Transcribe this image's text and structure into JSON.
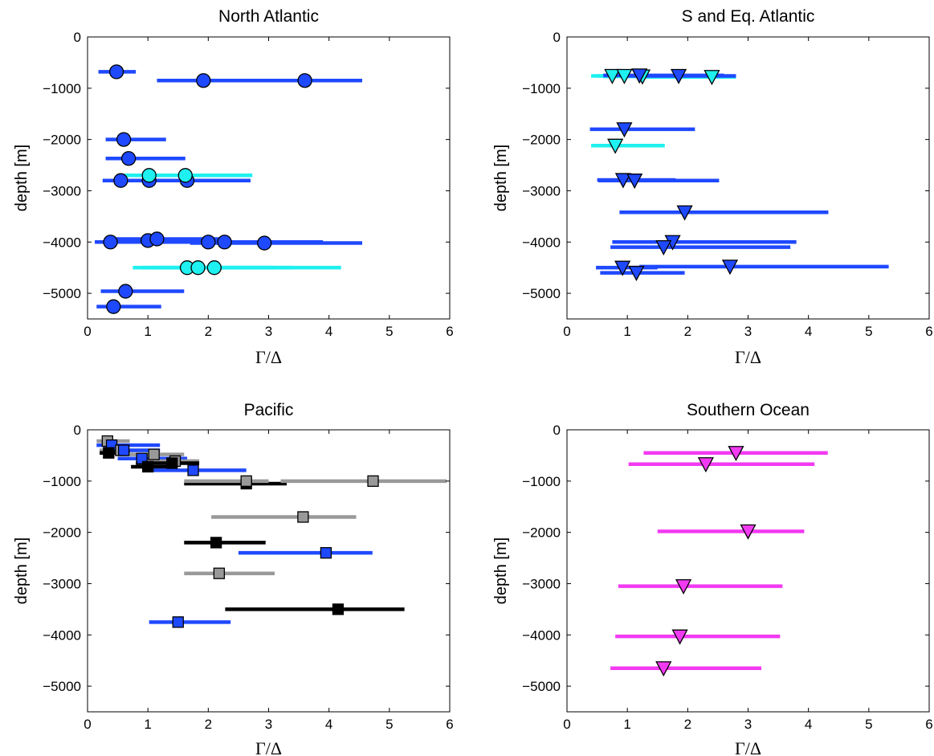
{
  "figure": {
    "title": ""
  },
  "chart_data": [
    {
      "id": "north-atlantic",
      "type": "scatter",
      "title": "North Atlantic",
      "xlabel": "Γ/Δ",
      "ylabel": "depth [m]",
      "xlim": [
        0,
        6
      ],
      "ylim": [
        -5500,
        0
      ],
      "xticks": [
        0,
        1,
        2,
        3,
        4,
        5,
        6
      ],
      "yticks": [
        0,
        -1000,
        -2000,
        -3000,
        -4000,
        -5000
      ],
      "marker": "circle",
      "points": [
        {
          "x": 0.48,
          "y": -680,
          "xmin": 0.18,
          "xmax": 0.8,
          "color": "#1f49ff"
        },
        {
          "x": 1.92,
          "y": -850,
          "xmin": 1.15,
          "xmax": 2.6,
          "color": "#1f49ff"
        },
        {
          "x": 3.6,
          "y": -850,
          "xmin": 2.5,
          "xmax": 4.55,
          "color": "#1f49ff"
        },
        {
          "x": 0.6,
          "y": -2000,
          "xmin": 0.3,
          "xmax": 1.3,
          "color": "#1f49ff"
        },
        {
          "x": 0.68,
          "y": -2370,
          "xmin": 0.3,
          "xmax": 1.62,
          "color": "#1f49ff"
        },
        {
          "x": 0.55,
          "y": -2800,
          "xmin": 0.25,
          "xmax": 1.0,
          "color": "#1f49ff"
        },
        {
          "x": 1.02,
          "y": -2800,
          "xmin": 0.5,
          "xmax": 2.2,
          "color": "#1f49ff"
        },
        {
          "x": 1.65,
          "y": -2800,
          "xmin": 0.9,
          "xmax": 2.7,
          "color": "#1f49ff"
        },
        {
          "x": 1.02,
          "y": -2700,
          "xmin": 0.5,
          "xmax": 2.2,
          "color": "#1ff0f0"
        },
        {
          "x": 1.62,
          "y": -2700,
          "xmin": 0.9,
          "xmax": 2.73,
          "color": "#1ff0f0"
        },
        {
          "x": 0.38,
          "y": -4000,
          "xmin": 0.12,
          "xmax": 0.9,
          "color": "#1f49ff"
        },
        {
          "x": 1.0,
          "y": -3970,
          "xmin": 0.3,
          "xmax": 2.0,
          "color": "#1f49ff"
        },
        {
          "x": 1.15,
          "y": -3940,
          "xmin": 0.4,
          "xmax": 2.3,
          "color": "#1f49ff"
        },
        {
          "x": 2.0,
          "y": -4000,
          "xmin": 1.0,
          "xmax": 3.7,
          "color": "#1f49ff"
        },
        {
          "x": 2.27,
          "y": -4000,
          "xmin": 1.2,
          "xmax": 3.9,
          "color": "#1f49ff"
        },
        {
          "x": 2.93,
          "y": -4020,
          "xmin": 1.7,
          "xmax": 4.55,
          "color": "#1f49ff"
        },
        {
          "x": 1.65,
          "y": -4500,
          "xmin": 0.75,
          "xmax": 3.1,
          "color": "#1ff0f0"
        },
        {
          "x": 1.83,
          "y": -4500,
          "xmin": 0.9,
          "xmax": 3.4,
          "color": "#1ff0f0"
        },
        {
          "x": 2.1,
          "y": -4500,
          "xmin": 1.1,
          "xmax": 4.2,
          "color": "#1ff0f0"
        },
        {
          "x": 0.63,
          "y": -4960,
          "xmin": 0.22,
          "xmax": 1.6,
          "color": "#1f49ff"
        },
        {
          "x": 0.43,
          "y": -5260,
          "xmin": 0.15,
          "xmax": 1.22,
          "color": "#1f49ff"
        }
      ]
    },
    {
      "id": "s-eq-atlantic",
      "type": "scatter",
      "title": "S and Eq. Atlantic",
      "xlabel": "Γ/Δ",
      "ylabel": "depth [m]",
      "xlim": [
        0,
        6
      ],
      "ylim": [
        -5500,
        0
      ],
      "xticks": [
        0,
        1,
        2,
        3,
        4,
        5,
        6
      ],
      "yticks": [
        0,
        -1000,
        -2000,
        -3000,
        -4000,
        -5000
      ],
      "marker": "triangle-down",
      "points": [
        {
          "x": 0.75,
          "y": -760,
          "xmin": 0.4,
          "xmax": 1.5,
          "color": "#1ff0f0"
        },
        {
          "x": 0.95,
          "y": -760,
          "xmin": 0.5,
          "xmax": 1.9,
          "color": "#1ff0f0"
        },
        {
          "x": 1.25,
          "y": -770,
          "xmin": 0.6,
          "xmax": 2.3,
          "color": "#1ff0f0"
        },
        {
          "x": 2.4,
          "y": -780,
          "xmin": 1.2,
          "xmax": 2.8,
          "color": "#1ff0f0"
        },
        {
          "x": 1.2,
          "y": -750,
          "xmin": 0.6,
          "xmax": 2.6,
          "color": "#1f49ff"
        },
        {
          "x": 1.85,
          "y": -760,
          "xmin": 0.9,
          "xmax": 2.8,
          "color": "#1f49ff"
        },
        {
          "x": 0.95,
          "y": -1800,
          "xmin": 0.38,
          "xmax": 2.12,
          "color": "#1f49ff"
        },
        {
          "x": 0.8,
          "y": -2120,
          "xmin": 0.4,
          "xmax": 1.62,
          "color": "#1ff0f0"
        },
        {
          "x": 0.93,
          "y": -2790,
          "xmin": 0.5,
          "xmax": 1.8,
          "color": "#1f49ff"
        },
        {
          "x": 1.12,
          "y": -2800,
          "xmin": 0.52,
          "xmax": 2.52,
          "color": "#1f49ff"
        },
        {
          "x": 1.95,
          "y": -3420,
          "xmin": 0.87,
          "xmax": 4.33,
          "color": "#1f49ff"
        },
        {
          "x": 1.75,
          "y": -4000,
          "xmin": 0.75,
          "xmax": 3.8,
          "color": "#1f49ff"
        },
        {
          "x": 1.6,
          "y": -4100,
          "xmin": 0.72,
          "xmax": 3.7,
          "color": "#1f49ff"
        },
        {
          "x": 0.92,
          "y": -4500,
          "xmin": 0.48,
          "xmax": 1.5,
          "color": "#1f49ff"
        },
        {
          "x": 2.7,
          "y": -4480,
          "xmin": 1.2,
          "xmax": 5.33,
          "color": "#1f49ff"
        },
        {
          "x": 1.15,
          "y": -4600,
          "xmin": 0.55,
          "xmax": 1.95,
          "color": "#1f49ff"
        }
      ]
    },
    {
      "id": "pacific",
      "type": "scatter",
      "title": "Pacific",
      "xlabel": "Γ/Δ",
      "ylabel": "depth [m]",
      "xlim": [
        0,
        6
      ],
      "ylim": [
        -5500,
        0
      ],
      "xticks": [
        0,
        1,
        2,
        3,
        4,
        5,
        6
      ],
      "yticks": [
        0,
        -1000,
        -2000,
        -3000,
        -4000,
        -5000
      ],
      "marker": "square",
      "points": [
        {
          "x": 0.33,
          "y": -220,
          "xmin": 0.15,
          "xmax": 0.7,
          "color": "#999999"
        },
        {
          "x": 0.4,
          "y": -300,
          "xmin": 0.15,
          "xmax": 1.2,
          "color": "#1f49ff"
        },
        {
          "x": 0.55,
          "y": -400,
          "xmin": 0.2,
          "xmax": 1.0,
          "color": "#999999"
        },
        {
          "x": 0.6,
          "y": -400,
          "xmin": 0.3,
          "xmax": 1.2,
          "color": "#1f49ff"
        },
        {
          "x": 0.35,
          "y": -450,
          "xmin": 0.2,
          "xmax": 0.7,
          "color": "#000000"
        },
        {
          "x": 1.1,
          "y": -480,
          "xmin": 0.5,
          "xmax": 1.6,
          "color": "#999999"
        },
        {
          "x": 0.9,
          "y": -560,
          "xmin": 0.5,
          "xmax": 1.65,
          "color": "#1f49ff"
        },
        {
          "x": 1.45,
          "y": -610,
          "xmin": 0.9,
          "xmax": 1.85,
          "color": "#999999"
        },
        {
          "x": 1.4,
          "y": -650,
          "xmin": 0.8,
          "xmax": 1.85,
          "color": "#000000"
        },
        {
          "x": 1.0,
          "y": -720,
          "xmin": 0.72,
          "xmax": 1.35,
          "color": "#000000"
        },
        {
          "x": 1.75,
          "y": -790,
          "xmin": 1.05,
          "xmax": 2.63,
          "color": "#1f49ff"
        },
        {
          "x": 2.63,
          "y": -1050,
          "xmin": 1.6,
          "xmax": 3.3,
          "color": "#000000"
        },
        {
          "x": 2.63,
          "y": -1000,
          "xmin": 1.6,
          "xmax": 3.0,
          "color": "#999999"
        },
        {
          "x": 4.73,
          "y": -1000,
          "xmin": 3.2,
          "xmax": 5.95,
          "color": "#999999"
        },
        {
          "x": 3.57,
          "y": -1700,
          "xmin": 2.05,
          "xmax": 4.45,
          "color": "#999999"
        },
        {
          "x": 2.13,
          "y": -2200,
          "xmin": 1.6,
          "xmax": 2.95,
          "color": "#000000"
        },
        {
          "x": 3.95,
          "y": -2400,
          "xmin": 2.5,
          "xmax": 4.72,
          "color": "#1f49ff"
        },
        {
          "x": 2.18,
          "y": -2800,
          "xmin": 1.6,
          "xmax": 3.1,
          "color": "#999999"
        },
        {
          "x": 4.15,
          "y": -3500,
          "xmin": 2.28,
          "xmax": 5.25,
          "color": "#000000"
        },
        {
          "x": 1.5,
          "y": -3750,
          "xmin": 1.02,
          "xmax": 2.37,
          "color": "#1f49ff"
        }
      ]
    },
    {
      "id": "southern-ocean",
      "type": "scatter",
      "title": "Southern Ocean",
      "xlabel": "Γ/Δ",
      "ylabel": "depth [m]",
      "xlim": [
        0,
        6
      ],
      "ylim": [
        -5500,
        0
      ],
      "xticks": [
        0,
        1,
        2,
        3,
        4,
        5,
        6
      ],
      "yticks": [
        0,
        -1000,
        -2000,
        -3000,
        -4000,
        -5000
      ],
      "marker": "triangle-down",
      "points": [
        {
          "x": 2.8,
          "y": -450,
          "xmin": 1.27,
          "xmax": 4.32,
          "color": "#f23af2"
        },
        {
          "x": 2.3,
          "y": -670,
          "xmin": 1.02,
          "xmax": 4.1,
          "color": "#f23af2"
        },
        {
          "x": 3.0,
          "y": -1980,
          "xmin": 1.5,
          "xmax": 3.93,
          "color": "#f23af2"
        },
        {
          "x": 1.93,
          "y": -3050,
          "xmin": 0.85,
          "xmax": 3.57,
          "color": "#f23af2"
        },
        {
          "x": 1.87,
          "y": -4030,
          "xmin": 0.8,
          "xmax": 3.53,
          "color": "#f23af2"
        },
        {
          "x": 1.6,
          "y": -4650,
          "xmin": 0.72,
          "xmax": 3.22,
          "color": "#f23af2"
        }
      ]
    }
  ]
}
